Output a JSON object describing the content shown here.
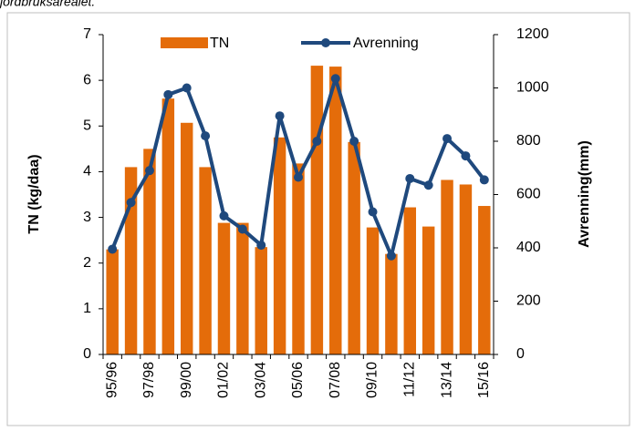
{
  "chart_data": {
    "type": "bar-line",
    "note": "jordbruksarealet.",
    "y_label": "TN (kg/daa)",
    "y2_label": "Avrenning(mm)",
    "categories": [
      "95/96",
      null,
      "97/98",
      null,
      "99/00",
      null,
      "01/02",
      null,
      "03/04",
      null,
      "05/06",
      null,
      "07/08",
      null,
      "09/10",
      null,
      "11/12",
      null,
      "13/14",
      null,
      "15/16"
    ],
    "series": [
      {
        "name": "TN",
        "type": "bar",
        "color": "#e46c0a",
        "values": [
          2.3,
          4.1,
          4.5,
          5.6,
          5.07,
          4.1,
          2.88,
          2.88,
          2.35,
          4.75,
          4.18,
          6.32,
          6.3,
          4.65,
          2.78,
          2.2,
          3.22,
          2.8,
          3.82,
          3.72,
          3.25
        ]
      },
      {
        "name": "Avrenning",
        "type": "line",
        "axis": "y2",
        "color": "#1f497d",
        "values": [
          395,
          570,
          690,
          975,
          1000,
          820,
          520,
          470,
          410,
          895,
          665,
          800,
          1035,
          800,
          535,
          370,
          660,
          635,
          810,
          745,
          655
        ]
      }
    ],
    "ylim": [
      0,
      7
    ],
    "yticks": [
      0,
      1,
      2,
      3,
      4,
      5,
      6,
      7
    ],
    "y2lim": [
      0,
      1200
    ],
    "y2ticks": [
      0,
      200,
      400,
      600,
      800,
      1000,
      1200
    ],
    "legend": "top"
  }
}
